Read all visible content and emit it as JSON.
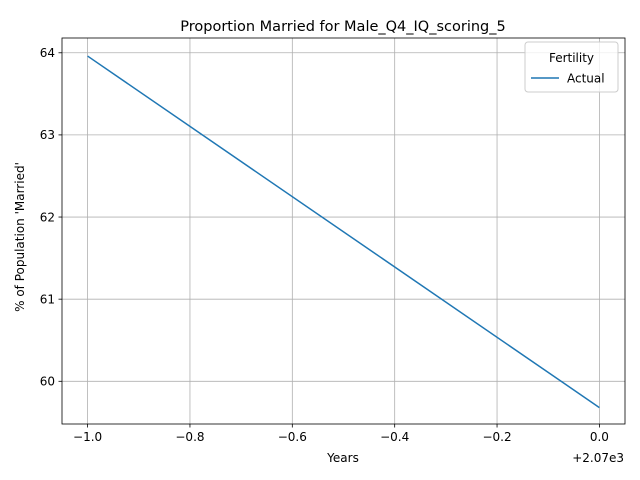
{
  "chart_data": {
    "type": "line",
    "title": "Proportion Married for Male_Q4_IQ_scoring_5",
    "xlabel": "Years",
    "ylabel": "% of Population 'Married'",
    "x_offset_label": "+2.07e3",
    "xlim": [
      -1.05,
      0.05
    ],
    "ylim": [
      59.48,
      64.18
    ],
    "x_ticks": [
      -1.0,
      -0.8,
      -0.6,
      -0.4,
      -0.2,
      0.0
    ],
    "x_tick_labels": [
      "−1.0",
      "−0.8",
      "−0.6",
      "−0.4",
      "−0.2",
      "0.0"
    ],
    "y_ticks": [
      60,
      61,
      62,
      63,
      64
    ],
    "y_tick_labels": [
      "60",
      "61",
      "62",
      "63",
      "64"
    ],
    "grid": true,
    "legend": {
      "title": "Fertility",
      "placement": "top-right"
    },
    "series": [
      {
        "name": "Actual",
        "color": "#1f77b4",
        "x": [
          -1.0,
          0.0
        ],
        "y": [
          63.96,
          59.68
        ]
      }
    ]
  }
}
